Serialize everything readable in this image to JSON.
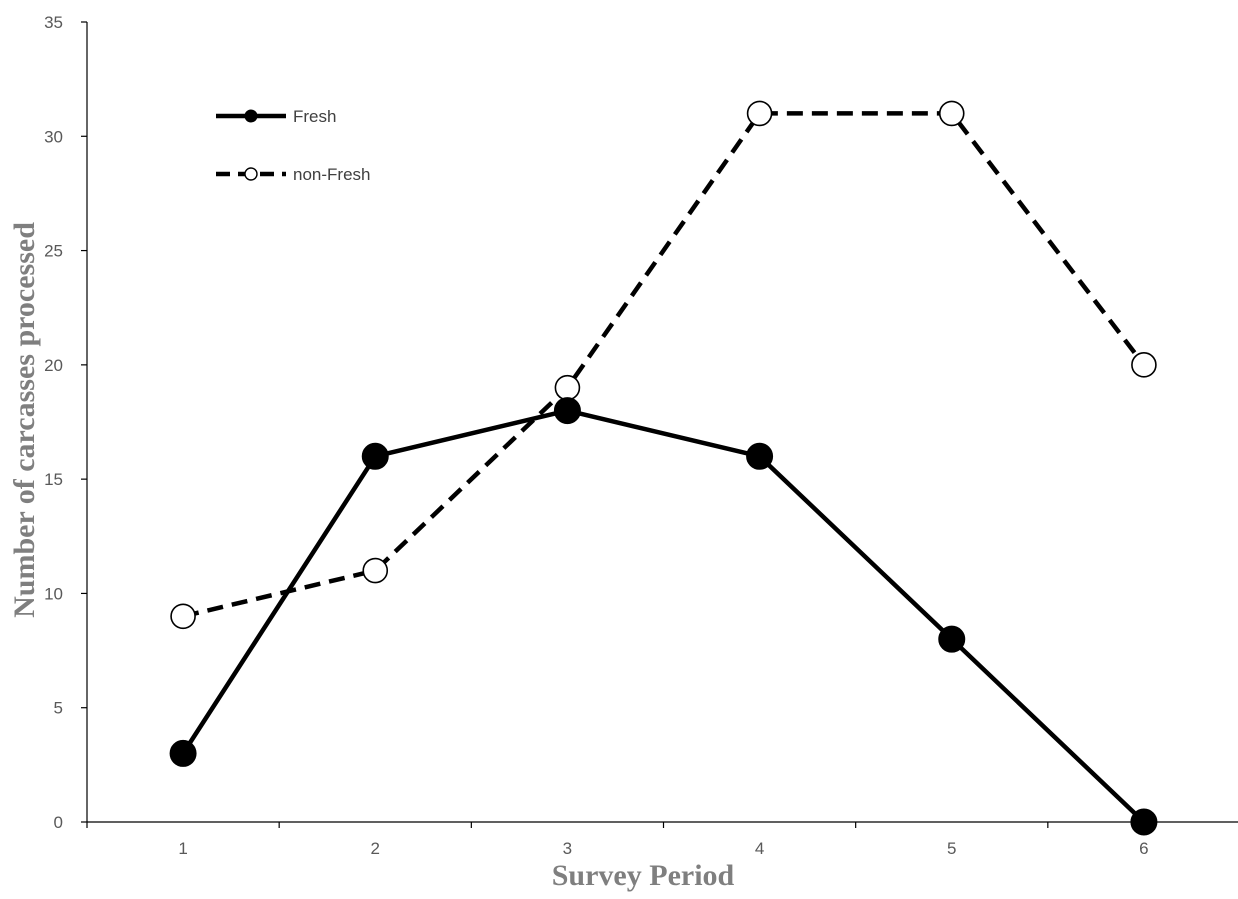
{
  "chart_data": {
    "type": "line",
    "x": [
      1,
      2,
      3,
      4,
      5,
      6
    ],
    "x_tick_labels": [
      "1",
      "2",
      "3",
      "4",
      "5",
      "6"
    ],
    "y_tick_labels": [
      "0",
      "5",
      "10",
      "15",
      "20",
      "25",
      "30",
      "35"
    ],
    "xlabel": "Survey Period",
    "ylabel": "Number of carcasses processed",
    "xlim": [
      0.5,
      6.5
    ],
    "ylim": [
      0,
      35
    ],
    "grid": false,
    "legend_position": "top-left",
    "series": [
      {
        "name": "Fresh",
        "values": [
          3,
          16,
          18,
          16,
          8,
          0
        ],
        "line_style": "solid",
        "marker": "filled-circle",
        "color": "#000000"
      },
      {
        "name": "non-Fresh",
        "values": [
          9,
          11,
          19,
          31,
          31,
          20
        ],
        "line_style": "dashed",
        "marker": "open-circle",
        "color": "#000000"
      }
    ]
  }
}
